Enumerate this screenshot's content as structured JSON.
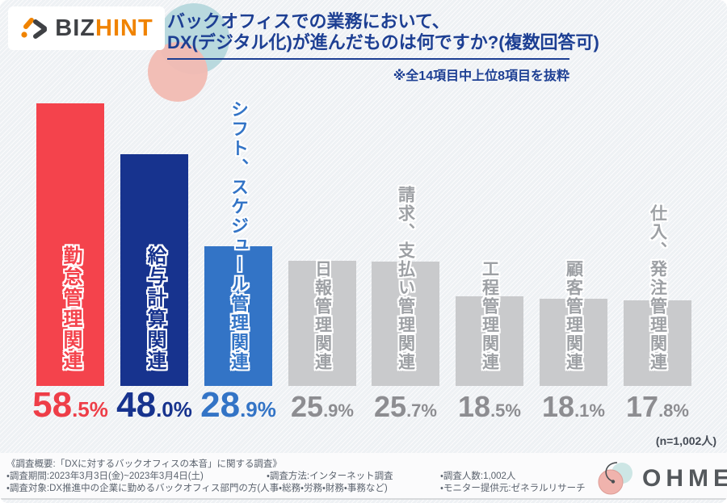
{
  "header": {
    "logo": {
      "icon": "bizhint-mark-icon",
      "text_dark": "BIZ",
      "text_orange": "HINT"
    },
    "title_line1": "バックオフィスでの業務において、",
    "title_line2": "DX(デジタル化)が進んだものは何ですか?(複数回答可)",
    "note": "※全14項目中上位8項目を抜粋"
  },
  "chart_data": {
    "type": "bar",
    "title": "バックオフィスでの業務において、DX(デジタル化)が進んだものは何ですか?(複数回答可)",
    "subtitle": "※全14項目中上位8項目を抜粋",
    "unit": "%",
    "categories": [
      "勤怠管理関連",
      "給与計算関連",
      "シフト、スケジュール管理関連",
      "日報管理関連",
      "請求、支払い管理関連",
      "工程管理関連",
      "顧客管理関連",
      "仕入、発注管理関連"
    ],
    "values": [
      58.5,
      48.0,
      28.9,
      25.9,
      25.7,
      18.5,
      18.1,
      17.8
    ],
    "value_labels": [
      "58.5%",
      "48.0%",
      "28.9%",
      "25.9%",
      "25.7%",
      "18.5%",
      "18.1%",
      "17.8%"
    ],
    "bar_colors": [
      "#f4434c",
      "#17338e",
      "#3374c6",
      "#c9cacc",
      "#c9cacc",
      "#c9cacc",
      "#c9cacc",
      "#c9cacc"
    ],
    "pct_colors": [
      "#ee3e48",
      "#17338e",
      "#3374c6",
      "#8d8d91",
      "#8d8d91",
      "#8d8d91",
      "#8d8d91",
      "#8d8d91"
    ],
    "label_colors": [
      "#f4434c",
      "#17338e",
      "#3374c6",
      "#9da0a4",
      "#9da0a4",
      "#9da0a4",
      "#9da0a4",
      "#9da0a4"
    ],
    "highlight_count": 3,
    "ylim": [
      0,
      60
    ],
    "grid": false,
    "legend": "none",
    "sample_note": "(n=1,002人)"
  },
  "footer": {
    "line1": "《調査概要:「DXに対するバックオフィスの本音」に関する調査》",
    "period": "・調査期間:2023年3月3日(金)~2023年3月4日(土)",
    "method": "・調査方法:インターネット調査",
    "respondents": "・調査人数:1,002人",
    "target": "・調査対象:DX推進中の企業に勤めるバックオフィス部門の方(人事・総務・労務・財務・事務など)",
    "monitor": "・モニター提供元:ゼネラルリサーチ",
    "provider_logo_text": "OHME"
  }
}
